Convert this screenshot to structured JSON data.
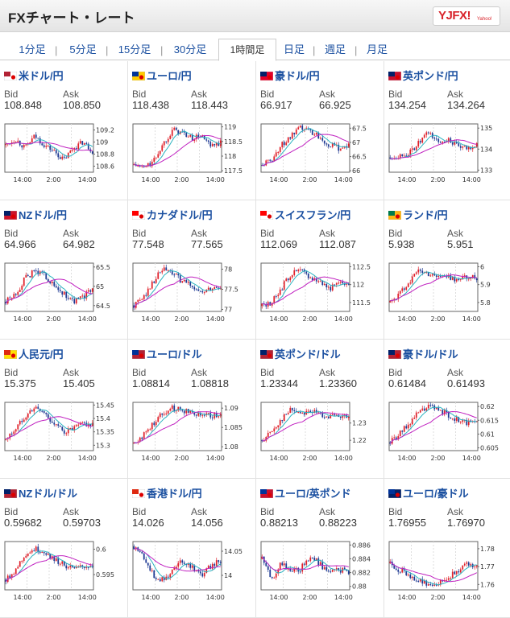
{
  "header": {
    "title": "FXチャート・レート",
    "logo_text": "YJFX!",
    "logo_sub": "Yahoo!"
  },
  "tabs": [
    {
      "label": "1分足",
      "active": false
    },
    {
      "label": "5分足",
      "active": false
    },
    {
      "label": "15分足",
      "active": false
    },
    {
      "label": "30分足",
      "active": false
    },
    {
      "label": "1時間足",
      "active": true
    },
    {
      "label": "日足",
      "active": false
    },
    {
      "label": "週足",
      "active": false
    },
    {
      "label": "月足",
      "active": false
    }
  ],
  "cards": [
    {
      "pair": "米ドル/円",
      "bid_label": "Bid",
      "ask_label": "Ask",
      "bid": "108.848",
      "ask": "108.850",
      "flag": [
        "#b22234",
        "#ffffff"
      ],
      "y_ticks": [
        "109.2",
        "109",
        "108.8",
        "108.6"
      ],
      "x_ticks": [
        "14:00",
        "2:00",
        "14:00"
      ],
      "chart_data": {
        "type": "candlestick",
        "ylim": [
          108.5,
          109.3
        ],
        "trend": [
          108.95,
          109.05,
          108.9,
          109.1,
          108.95,
          108.85,
          108.7,
          108.9,
          109.0,
          108.85
        ]
      }
    },
    {
      "pair": "ユーロ/円",
      "bid_label": "Bid",
      "ask_label": "Ask",
      "bid": "118.438",
      "ask": "118.443",
      "flag": [
        "#003399",
        "#ffcc00"
      ],
      "y_ticks": [
        "119",
        "118.5",
        "118",
        "117.5"
      ],
      "x_ticks": [
        "14:00",
        "2:00",
        "14:00"
      ],
      "chart_data": {
        "type": "candlestick",
        "ylim": [
          117.45,
          119.1
        ],
        "trend": [
          117.7,
          117.6,
          117.8,
          118.4,
          118.9,
          118.8,
          118.6,
          118.7,
          118.3,
          118.45
        ]
      }
    },
    {
      "pair": "豪ドル/円",
      "bid_label": "Bid",
      "ask_label": "Ask",
      "bid": "66.917",
      "ask": "66.925",
      "flag": [
        "#012169",
        "#e4002b"
      ],
      "y_ticks": [
        "67.5",
        "67",
        "66.5",
        "66"
      ],
      "x_ticks": [
        "14:00",
        "2:00",
        "14:00"
      ],
      "chart_data": {
        "type": "candlestick",
        "ylim": [
          65.95,
          67.65
        ],
        "trend": [
          66.2,
          66.4,
          66.9,
          67.2,
          67.5,
          67.4,
          67.2,
          66.9,
          66.8,
          66.9
        ]
      }
    },
    {
      "pair": "英ポンド/円",
      "bid_label": "Bid",
      "ask_label": "Ask",
      "bid": "134.254",
      "ask": "134.264",
      "flag": [
        "#012169",
        "#c8102e"
      ],
      "y_ticks": [
        "135",
        "134",
        "133"
      ],
      "x_ticks": [
        "14:00",
        "2:00",
        "14:00"
      ],
      "chart_data": {
        "type": "candlestick",
        "ylim": [
          132.9,
          135.2
        ],
        "trend": [
          133.6,
          133.7,
          133.8,
          134.3,
          134.8,
          134.3,
          134.5,
          134.1,
          134.0,
          134.25
        ]
      }
    },
    {
      "pair": "NZドル/円",
      "bid_label": "Bid",
      "ask_label": "Ask",
      "bid": "64.966",
      "ask": "64.982",
      "flag": [
        "#012169",
        "#cc142b"
      ],
      "y_ticks": [
        "65.5",
        "65",
        "64.5"
      ],
      "x_ticks": [
        "14:00",
        "2:00",
        "14:00"
      ],
      "chart_data": {
        "type": "candlestick",
        "ylim": [
          64.35,
          65.6
        ],
        "trend": [
          64.6,
          64.8,
          65.2,
          65.4,
          65.3,
          65.0,
          64.8,
          64.6,
          64.7,
          64.95
        ]
      }
    },
    {
      "pair": "カナダドル/円",
      "bid_label": "Bid",
      "ask_label": "Ask",
      "bid": "77.548",
      "ask": "77.565",
      "flag": [
        "#ff0000",
        "#ffffff"
      ],
      "y_ticks": [
        "78",
        "77.5",
        "77"
      ],
      "x_ticks": [
        "14:00",
        "2:00",
        "14:00"
      ],
      "chart_data": {
        "type": "candlestick",
        "ylim": [
          76.95,
          78.15
        ],
        "trend": [
          77.1,
          77.3,
          77.7,
          78.0,
          77.9,
          77.7,
          77.6,
          77.4,
          77.5,
          77.55
        ]
      }
    },
    {
      "pair": "スイスフラン/円",
      "bid_label": "Bid",
      "ask_label": "Ask",
      "bid": "112.069",
      "ask": "112.087",
      "flag": [
        "#ff0000",
        "#ffffff"
      ],
      "y_ticks": [
        "112.5",
        "112",
        "111.5"
      ],
      "x_ticks": [
        "14:00",
        "2:00",
        "14:00"
      ],
      "chart_data": {
        "type": "candlestick",
        "ylim": [
          111.25,
          112.6
        ],
        "trend": [
          111.4,
          111.5,
          111.9,
          112.3,
          112.4,
          112.2,
          112.1,
          111.9,
          112.0,
          112.07
        ]
      }
    },
    {
      "pair": "ランド/円",
      "bid_label": "Bid",
      "ask_label": "Ask",
      "bid": "5.938",
      "ask": "5.951",
      "flag": [
        "#007a4d",
        "#ffb612"
      ],
      "y_ticks": [
        "6",
        "5.9",
        "5.8"
      ],
      "x_ticks": [
        "14:00",
        "2:00",
        "14:00"
      ],
      "chart_data": {
        "type": "candlestick",
        "ylim": [
          5.75,
          6.02
        ],
        "trend": [
          5.8,
          5.85,
          5.92,
          5.98,
          5.96,
          5.95,
          5.94,
          5.93,
          5.94,
          5.94
        ]
      }
    },
    {
      "pair": "人民元/円",
      "bid_label": "Bid",
      "ask_label": "Ask",
      "bid": "15.375",
      "ask": "15.405",
      "flag": [
        "#de2910",
        "#ffde00"
      ],
      "y_ticks": [
        "15.45",
        "15.4",
        "15.35",
        "15.3"
      ],
      "x_ticks": [
        "14:00",
        "2:00",
        "14:00"
      ],
      "chart_data": {
        "type": "candlestick",
        "ylim": [
          15.28,
          15.46
        ],
        "trend": [
          15.32,
          15.36,
          15.41,
          15.44,
          15.42,
          15.38,
          15.35,
          15.36,
          15.38,
          15.375
        ]
      }
    },
    {
      "pair": "ユーロ/ドル",
      "bid_label": "Bid",
      "ask_label": "Ask",
      "bid": "1.08814",
      "ask": "1.08818",
      "flag": [
        "#003399",
        "#b22234"
      ],
      "y_ticks": [
        "1.09",
        "1.085",
        "1.08"
      ],
      "x_ticks": [
        "14:00",
        "2:00",
        "14:00"
      ],
      "chart_data": {
        "type": "candlestick",
        "ylim": [
          1.079,
          1.0915
        ],
        "trend": [
          1.081,
          1.083,
          1.086,
          1.089,
          1.09,
          1.0895,
          1.089,
          1.0885,
          1.088,
          1.0881
        ]
      }
    },
    {
      "pair": "英ポンド/ドル",
      "bid_label": "Bid",
      "ask_label": "Ask",
      "bid": "1.23344",
      "ask": "1.23360",
      "flag": [
        "#012169",
        "#b22234"
      ],
      "y_ticks": [
        "1.23",
        "1.22"
      ],
      "x_ticks": [
        "14:00",
        "2:00",
        "14:00"
      ],
      "chart_data": {
        "type": "candlestick",
        "ylim": [
          1.214,
          1.242
        ],
        "trend": [
          1.22,
          1.225,
          1.232,
          1.238,
          1.236,
          1.237,
          1.235,
          1.234,
          1.233,
          1.2334
        ]
      }
    },
    {
      "pair": "豪ドル/ドル",
      "bid_label": "Bid",
      "ask_label": "Ask",
      "bid": "0.61484",
      "ask": "0.61493",
      "flag": [
        "#012169",
        "#b22234"
      ],
      "y_ticks": [
        "0.62",
        "0.615",
        "0.61",
        "0.605"
      ],
      "x_ticks": [
        "14:00",
        "2:00",
        "14:00"
      ],
      "chart_data": {
        "type": "candlestick",
        "ylim": [
          0.604,
          0.6215
        ],
        "trend": [
          0.607,
          0.61,
          0.614,
          0.618,
          0.62,
          0.619,
          0.617,
          0.615,
          0.614,
          0.6148
        ]
      }
    },
    {
      "pair": "NZドル/ドル",
      "bid_label": "Bid",
      "ask_label": "Ask",
      "bid": "0.59682",
      "ask": "0.59703",
      "flag": [
        "#012169",
        "#b22234"
      ],
      "y_ticks": [
        "0.6",
        "0.595"
      ],
      "x_ticks": [
        "14:00",
        "2:00",
        "14:00"
      ],
      "chart_data": {
        "type": "candlestick",
        "ylim": [
          0.592,
          0.6015
        ],
        "trend": [
          0.594,
          0.596,
          0.599,
          0.6,
          0.5995,
          0.598,
          0.597,
          0.596,
          0.5965,
          0.5968
        ]
      }
    },
    {
      "pair": "香港ドル/円",
      "bid_label": "Bid",
      "ask_label": "Ask",
      "bid": "14.026",
      "ask": "14.056",
      "flag": [
        "#de2910",
        "#ffffff"
      ],
      "y_ticks": [
        "14.05",
        "14"
      ],
      "x_ticks": [
        "14:00",
        "2:00",
        "14:00"
      ],
      "chart_data": {
        "type": "candlestick",
        "ylim": [
          13.97,
          14.07
        ],
        "trend": [
          14.06,
          14.04,
          14.0,
          13.99,
          14.01,
          14.03,
          14.02,
          14.0,
          14.02,
          14.03
        ]
      }
    },
    {
      "pair": "ユーロ/英ポンド",
      "bid_label": "Bid",
      "ask_label": "Ask",
      "bid": "0.88213",
      "ask": "0.88223",
      "flag": [
        "#003399",
        "#c8102e"
      ],
      "y_ticks": [
        "0.886",
        "0.884",
        "0.882",
        "0.88"
      ],
      "x_ticks": [
        "14:00",
        "2:00",
        "14:00"
      ],
      "chart_data": {
        "type": "candlestick",
        "ylim": [
          0.8795,
          0.8865
        ],
        "trend": [
          0.884,
          0.881,
          0.8835,
          0.882,
          0.8825,
          0.8845,
          0.8832,
          0.882,
          0.8824,
          0.8822
        ]
      }
    },
    {
      "pair": "ユーロ/豪ドル",
      "bid_label": "Bid",
      "ask_label": "Ask",
      "bid": "1.76955",
      "ask": "1.76970",
      "flag": [
        "#003399",
        "#012169"
      ],
      "y_ticks": [
        "1.78",
        "1.77",
        "1.76"
      ],
      "x_ticks": [
        "14:00",
        "2:00",
        "14:00"
      ],
      "chart_data": {
        "type": "candlestick",
        "ylim": [
          1.757,
          1.784
        ],
        "trend": [
          1.772,
          1.768,
          1.765,
          1.762,
          1.76,
          1.761,
          1.764,
          1.768,
          1.771,
          1.7696
        ]
      }
    }
  ]
}
